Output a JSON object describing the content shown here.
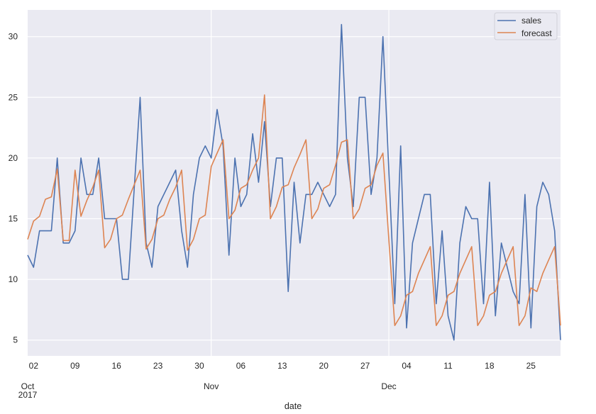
{
  "chart_data": {
    "type": "line",
    "title": "",
    "xlabel": "date",
    "ylabel": "",
    "ylim": [
      3.7,
      32.2
    ],
    "grid": true,
    "legend_position": "upper right",
    "x_start": "2017-10-01",
    "x_end": "2017-12-30",
    "x_frequency": "daily",
    "yticks": [
      5,
      10,
      15,
      20,
      25,
      30
    ],
    "xticks_minor": [
      {
        "day": 1,
        "label": "02"
      },
      {
        "day": 8,
        "label": "09"
      },
      {
        "day": 15,
        "label": "16"
      },
      {
        "day": 22,
        "label": "23"
      },
      {
        "day": 29,
        "label": "30"
      },
      {
        "day": 36,
        "label": "06"
      },
      {
        "day": 43,
        "label": "13"
      },
      {
        "day": 50,
        "label": "20"
      },
      {
        "day": 57,
        "label": "27"
      },
      {
        "day": 64,
        "label": "04"
      },
      {
        "day": 71,
        "label": "11"
      },
      {
        "day": 78,
        "label": "18"
      },
      {
        "day": 85,
        "label": "25"
      }
    ],
    "xticks_major": [
      {
        "day": 0,
        "label": "Oct\n2017"
      },
      {
        "day": 31,
        "label": "Nov"
      },
      {
        "day": 61,
        "label": "Dec"
      }
    ],
    "series": [
      {
        "name": "sales",
        "color": "#4c72b0",
        "values": [
          12,
          11,
          14,
          14,
          14,
          20,
          13,
          13,
          14,
          20,
          17,
          17,
          20,
          15,
          15,
          15,
          10,
          10,
          17.5,
          25,
          13,
          11,
          16,
          17,
          18,
          19,
          14,
          11,
          17,
          20,
          21,
          20,
          24,
          21,
          12,
          20,
          16,
          17,
          22,
          18,
          23,
          16,
          20,
          20,
          9,
          18,
          13,
          17,
          17,
          18,
          17,
          16,
          17,
          31,
          20,
          16,
          25,
          25,
          17,
          20,
          30,
          19,
          8,
          21,
          6,
          13,
          15,
          17,
          17,
          8,
          14,
          7,
          5,
          13,
          16,
          15,
          15,
          8,
          18,
          7,
          13,
          11,
          9,
          8,
          17,
          6,
          16,
          18,
          17,
          14,
          5
        ]
      },
      {
        "name": "forecast",
        "color": "#dd8452",
        "values": [
          13.3,
          14.8,
          15.2,
          16.6,
          16.8,
          19.1,
          13.2,
          13.2,
          19.0,
          15.2,
          16.5,
          17.6,
          19.0,
          12.6,
          13.3,
          15.0,
          15.3,
          16.6,
          17.8,
          19.0,
          12.5,
          13.3,
          15.0,
          15.3,
          16.6,
          17.6,
          19.0,
          12.4,
          13.3,
          15.0,
          15.3,
          19.3,
          20.4,
          21.5,
          15.0,
          15.7,
          17.5,
          17.8,
          19.0,
          20.0,
          25.2,
          15.0,
          16.0,
          17.6,
          17.8,
          19.2,
          20.3,
          21.5,
          15.0,
          15.8,
          17.5,
          17.8,
          19.4,
          21.3,
          21.5,
          15.0,
          15.8,
          17.5,
          17.8,
          19.4,
          20.4,
          13.3,
          6.2,
          7.0,
          8.7,
          9.0,
          10.5,
          11.6,
          12.7,
          6.2,
          7.0,
          8.7,
          9.0,
          10.5,
          11.6,
          12.7,
          6.2,
          7.0,
          8.7,
          9.0,
          10.5,
          11.6,
          12.7,
          6.2,
          7.0,
          9.3,
          9.0,
          10.5,
          11.6,
          12.7,
          6.2
        ]
      }
    ]
  },
  "legend": {
    "items": [
      {
        "label": "sales",
        "color": "#4c72b0"
      },
      {
        "label": "forecast",
        "color": "#dd8452"
      }
    ]
  },
  "style": {
    "plot_background": "#eaeaf2",
    "grid_color": "#ffffff",
    "text_color": "#262626"
  }
}
